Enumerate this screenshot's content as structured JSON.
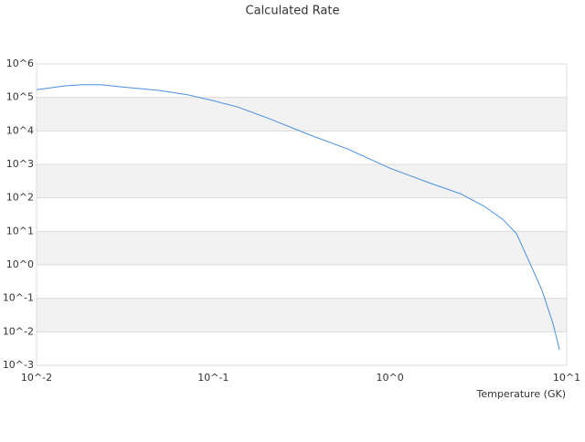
{
  "chart_data": {
    "type": "line",
    "title": "Calculated Rate",
    "x_label": "Temperature (GK)",
    "log_x": true,
    "log_y": true,
    "grid": true,
    "color": "#4a90e2",
    "x": [
      0.01,
      0.0143,
      0.0182,
      0.023,
      0.0292,
      0.0499,
      0.0714,
      0.1,
      0.137,
      0.208,
      0.356,
      0.574,
      1,
      1.67,
      2.53,
      3.41,
      4.34,
      5.2,
      6.2,
      7.26,
      8.38,
      9.1
    ],
    "values": [
      170000,
      220000,
      240000,
      240000,
      210000,
      160000,
      120000,
      80000,
      52000,
      23000,
      7400,
      2900,
      770,
      280,
      130,
      56,
      23,
      8.5,
      1.1,
      0.17,
      0.017,
      0.0029
    ],
    "xlim": [
      0.01,
      10
    ],
    "xticks": [
      {
        "value": 0.01,
        "label": "10^-2"
      },
      {
        "value": 0.1,
        "label": "10^-1"
      },
      {
        "value": 1,
        "label": "10^0"
      },
      {
        "value": 10,
        "label": "10^1"
      }
    ],
    "ylim": [
      0.001,
      1000000
    ],
    "yticks": [
      {
        "value": 1000000,
        "label": "10^6"
      },
      {
        "value": 100000,
        "label": "10^5"
      },
      {
        "value": 10000,
        "label": "10^4"
      },
      {
        "value": 1000,
        "label": "10^3"
      },
      {
        "value": 100,
        "label": "10^2"
      },
      {
        "value": 10,
        "label": "10^1"
      },
      {
        "value": 1,
        "label": "10^0"
      },
      {
        "value": 0.1,
        "label": "10^-1"
      },
      {
        "value": 0.01,
        "label": "10^-2"
      },
      {
        "value": 0.001,
        "label": "10^-3"
      }
    ]
  }
}
